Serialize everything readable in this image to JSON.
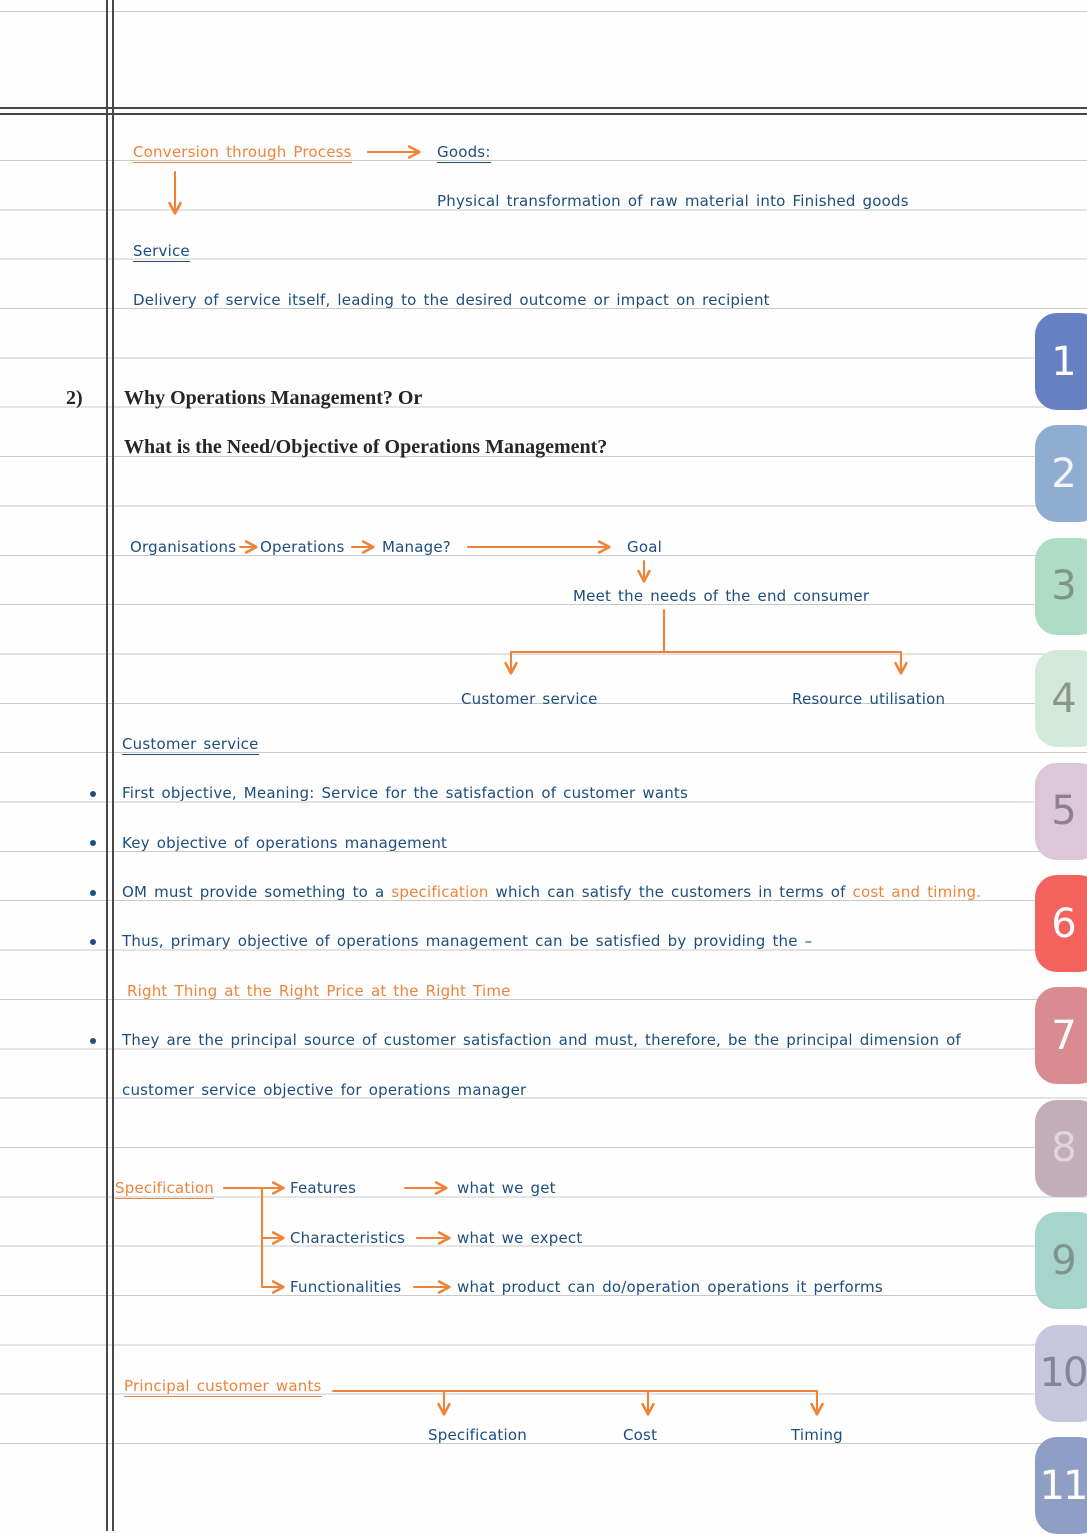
{
  "colors": {
    "ink": "#1d4e7e",
    "accent": "#ee8439",
    "heading": "#262626",
    "rule": "#c9c9c9",
    "margin": "#474747"
  },
  "top_diagram": {
    "conversion_label": "Conversion through Process",
    "goods_label": "Goods:",
    "goods_desc": "Physical transformation of raw material into Finished goods",
    "service_label": "Service",
    "service_desc": "Delivery of service itself, leading to the desired outcome or impact on recipient"
  },
  "question": {
    "number": "2)",
    "line1": "Why Operations Management? Or",
    "line2": "What is the Need/Objective of Operations Management?"
  },
  "goal_diagram": {
    "organisations": "Organisations",
    "operations": "Operations",
    "manage": "Manage?",
    "goal": "Goal",
    "meet_needs": "Meet the needs of the end consumer",
    "customer_service": "Customer service",
    "resource_utilisation": "Resource utilisation"
  },
  "customer_service_section": {
    "heading": "Customer service",
    "bullet1": "First objective, Meaning: Service for the satisfaction of customer wants",
    "bullet2": "Key objective of operations management",
    "bullet3_part1": "OM must provide something to a ",
    "bullet3_spec": "specification",
    "bullet3_part2": " which can satisfy the customers in terms of ",
    "bullet3_cost": "cost and timing.",
    "bullet4": "Thus, primary objective of operations management can be satisfied by providing the –",
    "highlight": "Right Thing at the Right Price at the Right Time",
    "bullet5_line1": "They are the principal source of customer satisfaction and must, therefore, be the principal dimension of",
    "bullet5_line2": "customer service objective for operations manager"
  },
  "specification_diagram": {
    "root": "Specification",
    "rows": [
      {
        "term": "Features",
        "desc": "what we get"
      },
      {
        "term": "Characteristics",
        "desc": "what we expect"
      },
      {
        "term": "Functionalities",
        "desc": "what product can do/operation operations it performs"
      }
    ]
  },
  "wants_diagram": {
    "root": "Principal customer wants",
    "items": [
      "Specification",
      "Cost",
      "Timing"
    ]
  },
  "tabs": [
    {
      "label": "1",
      "bg": "#6680c1",
      "fg": "#ffffff"
    },
    {
      "label": "2",
      "bg": "#8fadd0",
      "fg": "#f2f6fa"
    },
    {
      "label": "3",
      "bg": "#afdcc5",
      "fg": "#7f938a"
    },
    {
      "label": "4",
      "bg": "#d5e9db",
      "fg": "#8a968e"
    },
    {
      "label": "5",
      "bg": "#dbc7d7",
      "fg": "#8f7f8d"
    },
    {
      "label": "6",
      "bg": "#f4625e",
      "fg": "#ffffff"
    },
    {
      "label": "7",
      "bg": "#d98b91",
      "fg": "#ffffff"
    },
    {
      "label": "8",
      "bg": "#c3aeb7",
      "fg": "#e3d3da"
    },
    {
      "label": "9",
      "bg": "#a7d4cb",
      "fg": "#7e948e"
    },
    {
      "label": "10",
      "bg": "#c7c6dc",
      "fg": "#84849a"
    },
    {
      "label": "11",
      "bg": "#8e9ec5",
      "fg": "#ffffff"
    }
  ]
}
